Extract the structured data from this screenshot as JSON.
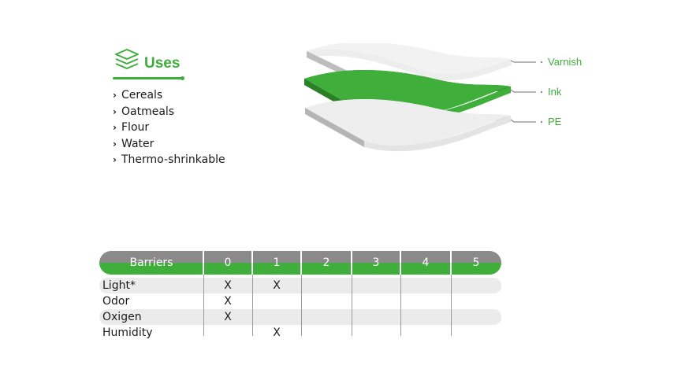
{
  "uses": {
    "title": "Uses",
    "items": [
      "Cereals",
      "Oatmeals",
      "Flour",
      "Water",
      "Thermo-shrinkable"
    ]
  },
  "layers": {
    "labels": [
      "Varnish",
      "Ink",
      "PE"
    ]
  },
  "barriers": {
    "header": "Barriers",
    "levels": [
      "0",
      "1",
      "2",
      "3",
      "4",
      "5"
    ],
    "rows": [
      {
        "label": "Light*",
        "marks": [
          "X",
          "X",
          "",
          "",
          "",
          ""
        ]
      },
      {
        "label": "Odor",
        "marks": [
          "X",
          "",
          "",
          "",
          "",
          ""
        ]
      },
      {
        "label": "Oxigen",
        "marks": [
          "X",
          "",
          "",
          "",
          "",
          ""
        ]
      },
      {
        "label": "Humidity",
        "marks": [
          "",
          "X",
          "",
          "",
          "",
          ""
        ]
      }
    ]
  },
  "colors": {
    "accent": "#3fae3a",
    "gray": "#8a8a8a",
    "shade": "#ebebeb"
  }
}
